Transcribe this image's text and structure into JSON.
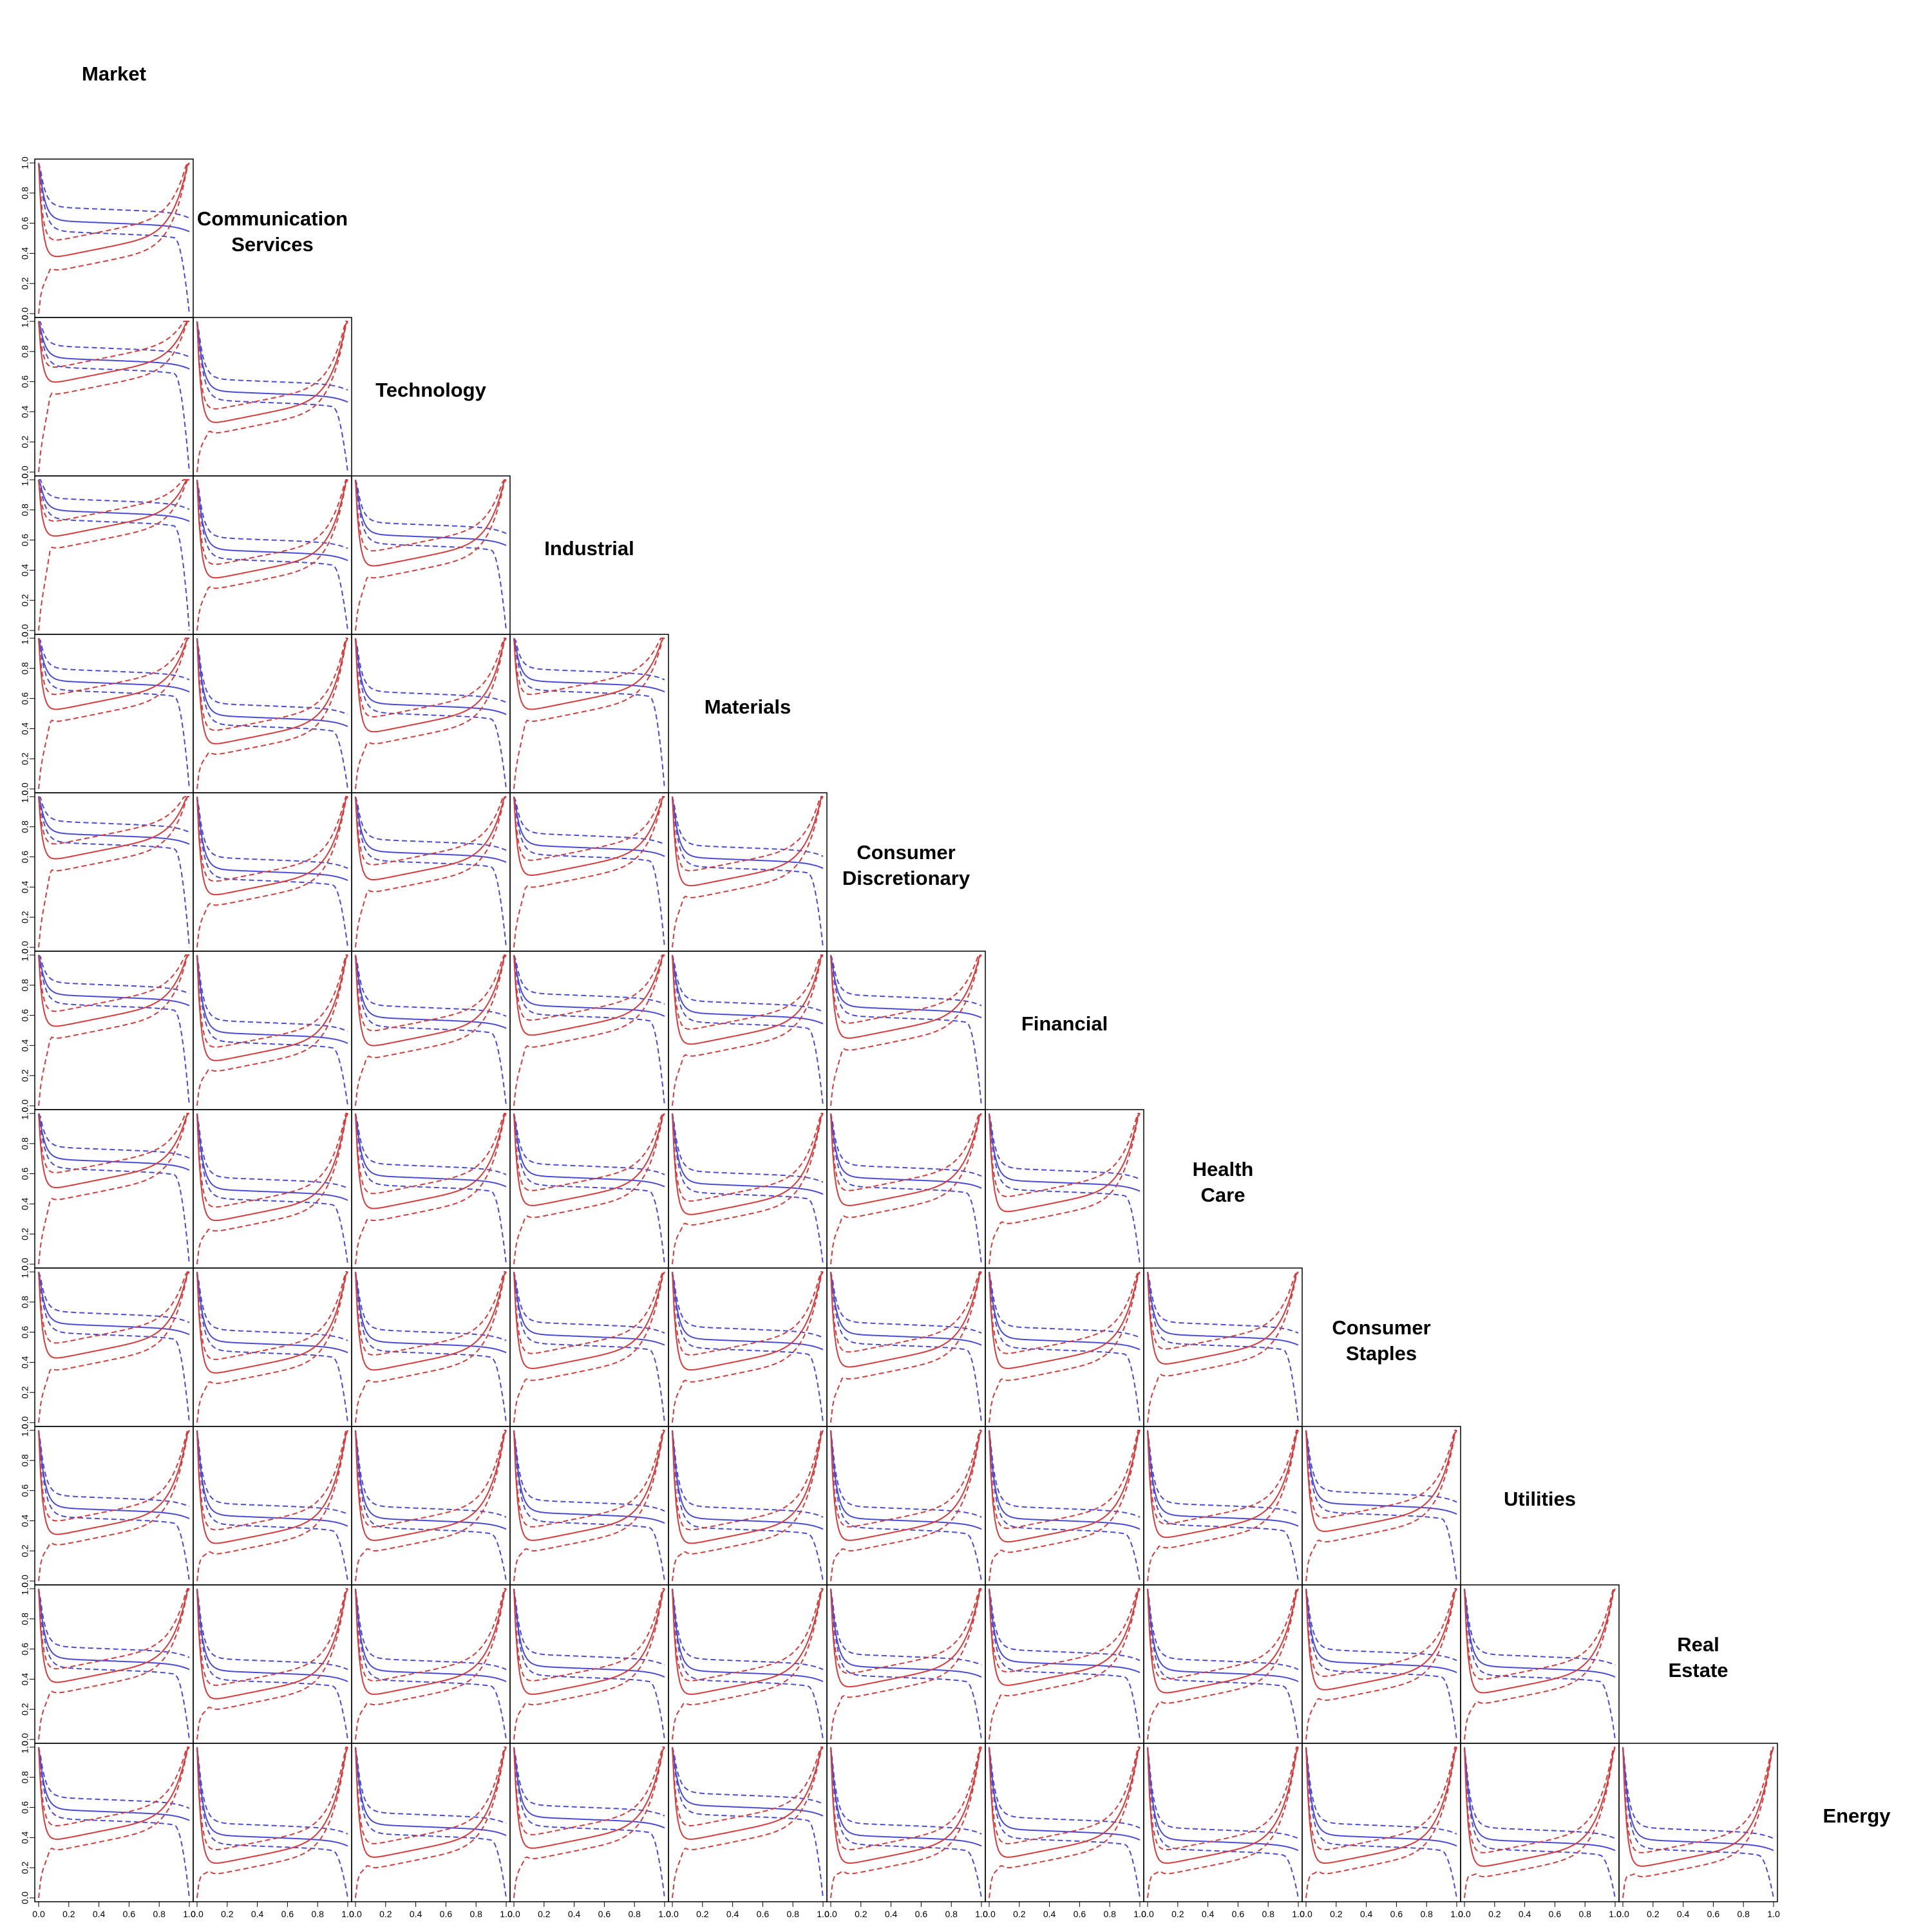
{
  "chart_data": {
    "type": "line",
    "title": "",
    "layout": "lower-triangular grid of pairwise panels",
    "labels": [
      [
        "Market"
      ],
      [
        "Communication",
        "Services"
      ],
      [
        "Technology"
      ],
      [
        "Industrial"
      ],
      [
        "Materials"
      ],
      [
        "Consumer",
        "Discretionary"
      ],
      [
        "Financial"
      ],
      [
        "Health",
        "Care"
      ],
      [
        "Consumer",
        "Staples"
      ],
      [
        "Utilities"
      ],
      [
        "Real",
        "Estate"
      ],
      [
        "Energy"
      ]
    ],
    "xlim": [
      0,
      1
    ],
    "ylim": [
      0,
      1
    ],
    "x_ticks": [
      "0.0",
      "0.2",
      "0.4",
      "0.6",
      "0.8",
      "1.0"
    ],
    "y_ticks": [
      "0.0",
      "0.2",
      "0.4",
      "0.6",
      "0.8",
      "1.0"
    ],
    "grid": false,
    "colors": {
      "blue": "#4a4ad8",
      "red": "#d63a3a",
      "frame": "#000000"
    },
    "series_styles": [
      {
        "color": "blue",
        "style": "solid"
      },
      {
        "color": "blue",
        "style": "dashed"
      },
      {
        "color": "red",
        "style": "solid"
      },
      {
        "color": "red",
        "style": "dashed"
      }
    ],
    "panel_shape": {
      "blue_solid": {
        "start": 1.0,
        "end": 0.6
      },
      "blue_upper": {
        "start": 1.0,
        "end": 1.0
      },
      "blue_lower": {
        "start": 0.95,
        "end": 0.0
      },
      "red_solid": {
        "start": 1.0,
        "end": 1.0
      },
      "red_upper": {
        "start": 1.0,
        "end": 1.0
      },
      "red_lower": {
        "start": 0.0,
        "end": 1.0
      }
    },
    "panels": [
      {
        "row": 1,
        "col": 0,
        "blue": 0.58,
        "blue_band": 0.07,
        "red": 0.35,
        "red_band": 0.09
      },
      {
        "row": 2,
        "col": 0,
        "blue": 0.72,
        "blue_band": 0.06,
        "red": 0.57,
        "red_band": 0.08
      },
      {
        "row": 2,
        "col": 1,
        "blue": 0.5,
        "blue_band": 0.06,
        "red": 0.3,
        "red_band": 0.07
      },
      {
        "row": 3,
        "col": 0,
        "blue": 0.76,
        "blue_band": 0.06,
        "red": 0.6,
        "red_band": 0.08
      },
      {
        "row": 3,
        "col": 1,
        "blue": 0.5,
        "blue_band": 0.06,
        "red": 0.32,
        "red_band": 0.07
      },
      {
        "row": 3,
        "col": 2,
        "blue": 0.6,
        "blue_band": 0.06,
        "red": 0.4,
        "red_band": 0.08
      },
      {
        "row": 4,
        "col": 0,
        "blue": 0.68,
        "blue_band": 0.06,
        "red": 0.5,
        "red_band": 0.08
      },
      {
        "row": 4,
        "col": 1,
        "blue": 0.45,
        "blue_band": 0.06,
        "red": 0.27,
        "red_band": 0.07
      },
      {
        "row": 4,
        "col": 2,
        "blue": 0.53,
        "blue_band": 0.06,
        "red": 0.35,
        "red_band": 0.08
      },
      {
        "row": 4,
        "col": 3,
        "blue": 0.68,
        "blue_band": 0.06,
        "red": 0.5,
        "red_band": 0.08
      },
      {
        "row": 5,
        "col": 0,
        "blue": 0.72,
        "blue_band": 0.06,
        "red": 0.56,
        "red_band": 0.08
      },
      {
        "row": 5,
        "col": 1,
        "blue": 0.48,
        "blue_band": 0.06,
        "red": 0.32,
        "red_band": 0.07
      },
      {
        "row": 5,
        "col": 2,
        "blue": 0.6,
        "blue_band": 0.06,
        "red": 0.42,
        "red_band": 0.08
      },
      {
        "row": 5,
        "col": 3,
        "blue": 0.64,
        "blue_band": 0.06,
        "red": 0.45,
        "red_band": 0.08
      },
      {
        "row": 5,
        "col": 4,
        "blue": 0.56,
        "blue_band": 0.06,
        "red": 0.38,
        "red_band": 0.08
      },
      {
        "row": 6,
        "col": 0,
        "blue": 0.7,
        "blue_band": 0.06,
        "red": 0.5,
        "red_band": 0.08
      },
      {
        "row": 6,
        "col": 1,
        "blue": 0.45,
        "blue_band": 0.06,
        "red": 0.27,
        "red_band": 0.07
      },
      {
        "row": 6,
        "col": 2,
        "blue": 0.55,
        "blue_band": 0.06,
        "red": 0.37,
        "red_band": 0.08
      },
      {
        "row": 6,
        "col": 3,
        "blue": 0.63,
        "blue_band": 0.06,
        "red": 0.44,
        "red_band": 0.08
      },
      {
        "row": 6,
        "col": 4,
        "blue": 0.58,
        "blue_band": 0.06,
        "red": 0.38,
        "red_band": 0.08
      },
      {
        "row": 6,
        "col": 5,
        "blue": 0.62,
        "blue_band": 0.06,
        "red": 0.42,
        "red_band": 0.08
      },
      {
        "row": 7,
        "col": 0,
        "blue": 0.66,
        "blue_band": 0.06,
        "red": 0.48,
        "red_band": 0.08
      },
      {
        "row": 7,
        "col": 1,
        "blue": 0.46,
        "blue_band": 0.06,
        "red": 0.26,
        "red_band": 0.07
      },
      {
        "row": 7,
        "col": 2,
        "blue": 0.55,
        "blue_band": 0.06,
        "red": 0.34,
        "red_band": 0.08
      },
      {
        "row": 7,
        "col": 3,
        "blue": 0.55,
        "blue_band": 0.06,
        "red": 0.36,
        "red_band": 0.08
      },
      {
        "row": 7,
        "col": 4,
        "blue": 0.5,
        "blue_band": 0.06,
        "red": 0.3,
        "red_band": 0.07
      },
      {
        "row": 7,
        "col": 5,
        "blue": 0.54,
        "blue_band": 0.06,
        "red": 0.36,
        "red_band": 0.08
      },
      {
        "row": 7,
        "col": 6,
        "blue": 0.52,
        "blue_band": 0.06,
        "red": 0.32,
        "red_band": 0.08
      },
      {
        "row": 8,
        "col": 0,
        "blue": 0.62,
        "blue_band": 0.06,
        "red": 0.4,
        "red_band": 0.08
      },
      {
        "row": 8,
        "col": 1,
        "blue": 0.5,
        "blue_band": 0.06,
        "red": 0.3,
        "red_band": 0.07
      },
      {
        "row": 8,
        "col": 2,
        "blue": 0.5,
        "blue_band": 0.06,
        "red": 0.32,
        "red_band": 0.08
      },
      {
        "row": 8,
        "col": 3,
        "blue": 0.55,
        "blue_band": 0.06,
        "red": 0.33,
        "red_band": 0.08
      },
      {
        "row": 8,
        "col": 4,
        "blue": 0.52,
        "blue_band": 0.06,
        "red": 0.32,
        "red_band": 0.08
      },
      {
        "row": 8,
        "col": 5,
        "blue": 0.55,
        "blue_band": 0.06,
        "red": 0.34,
        "red_band": 0.08
      },
      {
        "row": 8,
        "col": 6,
        "blue": 0.52,
        "blue_band": 0.06,
        "red": 0.33,
        "red_band": 0.08
      },
      {
        "row": 8,
        "col": 7,
        "blue": 0.55,
        "blue_band": 0.06,
        "red": 0.36,
        "red_band": 0.08
      },
      {
        "row": 9,
        "col": 0,
        "blue": 0.45,
        "blue_band": 0.06,
        "red": 0.28,
        "red_band": 0.07
      },
      {
        "row": 9,
        "col": 1,
        "blue": 0.4,
        "blue_band": 0.06,
        "red": 0.22,
        "red_band": 0.07
      },
      {
        "row": 9,
        "col": 2,
        "blue": 0.38,
        "blue_band": 0.06,
        "red": 0.24,
        "red_band": 0.07
      },
      {
        "row": 9,
        "col": 3,
        "blue": 0.42,
        "blue_band": 0.06,
        "red": 0.24,
        "red_band": 0.07
      },
      {
        "row": 9,
        "col": 4,
        "blue": 0.38,
        "blue_band": 0.06,
        "red": 0.22,
        "red_band": 0.07
      },
      {
        "row": 9,
        "col": 5,
        "blue": 0.38,
        "blue_band": 0.06,
        "red": 0.24,
        "red_band": 0.07
      },
      {
        "row": 9,
        "col": 6,
        "blue": 0.38,
        "blue_band": 0.06,
        "red": 0.23,
        "red_band": 0.07
      },
      {
        "row": 9,
        "col": 7,
        "blue": 0.4,
        "blue_band": 0.06,
        "red": 0.26,
        "red_band": 0.07
      },
      {
        "row": 9,
        "col": 8,
        "blue": 0.48,
        "blue_band": 0.06,
        "red": 0.3,
        "red_band": 0.07
      },
      {
        "row": 10,
        "col": 0,
        "blue": 0.5,
        "blue_band": 0.06,
        "red": 0.35,
        "red_band": 0.07
      },
      {
        "row": 10,
        "col": 1,
        "blue": 0.42,
        "blue_band": 0.06,
        "red": 0.24,
        "red_band": 0.07
      },
      {
        "row": 10,
        "col": 2,
        "blue": 0.42,
        "blue_band": 0.06,
        "red": 0.27,
        "red_band": 0.07
      },
      {
        "row": 10,
        "col": 3,
        "blue": 0.45,
        "blue_band": 0.06,
        "red": 0.27,
        "red_band": 0.07
      },
      {
        "row": 10,
        "col": 4,
        "blue": 0.42,
        "blue_band": 0.06,
        "red": 0.27,
        "red_band": 0.07
      },
      {
        "row": 10,
        "col": 5,
        "blue": 0.45,
        "blue_band": 0.06,
        "red": 0.32,
        "red_band": 0.07
      },
      {
        "row": 10,
        "col": 6,
        "blue": 0.48,
        "blue_band": 0.06,
        "red": 0.33,
        "red_band": 0.07
      },
      {
        "row": 10,
        "col": 7,
        "blue": 0.42,
        "blue_band": 0.06,
        "red": 0.28,
        "red_band": 0.07
      },
      {
        "row": 10,
        "col": 8,
        "blue": 0.48,
        "blue_band": 0.06,
        "red": 0.3,
        "red_band": 0.07
      },
      {
        "row": 10,
        "col": 9,
        "blue": 0.45,
        "blue_band": 0.06,
        "red": 0.28,
        "red_band": 0.07
      },
      {
        "row": 11,
        "col": 0,
        "blue": 0.55,
        "blue_band": 0.06,
        "red": 0.36,
        "red_band": 0.07
      },
      {
        "row": 11,
        "col": 1,
        "blue": 0.38,
        "blue_band": 0.06,
        "red": 0.2,
        "red_band": 0.07
      },
      {
        "row": 11,
        "col": 2,
        "blue": 0.45,
        "blue_band": 0.06,
        "red": 0.24,
        "red_band": 0.07
      },
      {
        "row": 11,
        "col": 3,
        "blue": 0.5,
        "blue_band": 0.06,
        "red": 0.3,
        "red_band": 0.07
      },
      {
        "row": 11,
        "col": 4,
        "blue": 0.58,
        "blue_band": 0.06,
        "red": 0.36,
        "red_band": 0.07
      },
      {
        "row": 11,
        "col": 5,
        "blue": 0.38,
        "blue_band": 0.06,
        "red": 0.2,
        "red_band": 0.07
      },
      {
        "row": 11,
        "col": 6,
        "blue": 0.42,
        "blue_band": 0.06,
        "red": 0.24,
        "red_band": 0.07
      },
      {
        "row": 11,
        "col": 7,
        "blue": 0.35,
        "blue_band": 0.06,
        "red": 0.2,
        "red_band": 0.07
      },
      {
        "row": 11,
        "col": 8,
        "blue": 0.38,
        "blue_band": 0.06,
        "red": 0.2,
        "red_band": 0.07
      },
      {
        "row": 11,
        "col": 9,
        "blue": 0.35,
        "blue_band": 0.06,
        "red": 0.18,
        "red_band": 0.07
      },
      {
        "row": 11,
        "col": 10,
        "blue": 0.35,
        "blue_band": 0.06,
        "red": 0.18,
        "red_band": 0.07
      }
    ]
  }
}
